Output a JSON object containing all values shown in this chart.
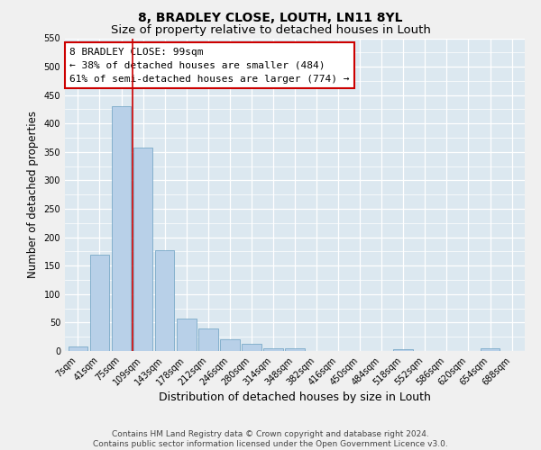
{
  "title1": "8, BRADLEY CLOSE, LOUTH, LN11 8YL",
  "title2": "Size of property relative to detached houses in Louth",
  "xlabel": "Distribution of detached houses by size in Louth",
  "ylabel": "Number of detached properties",
  "bar_labels": [
    "7sqm",
    "41sqm",
    "75sqm",
    "109sqm",
    "143sqm",
    "178sqm",
    "212sqm",
    "246sqm",
    "280sqm",
    "314sqm",
    "348sqm",
    "382sqm",
    "416sqm",
    "450sqm",
    "484sqm",
    "518sqm",
    "552sqm",
    "586sqm",
    "620sqm",
    "654sqm",
    "688sqm"
  ],
  "bar_values": [
    8,
    170,
    430,
    357,
    178,
    57,
    40,
    21,
    12,
    5,
    5,
    0,
    0,
    0,
    0,
    3,
    0,
    0,
    0,
    4,
    0
  ],
  "bar_color": "#b8d0e8",
  "bar_edge_color": "#6a9fc0",
  "vline_color": "#cc0000",
  "vline_position": 2.5,
  "annotation_text": "8 BRADLEY CLOSE: 99sqm\n← 38% of detached houses are smaller (484)\n61% of semi-detached houses are larger (774) →",
  "annotation_box_color": "#ffffff",
  "annotation_box_edge": "#cc0000",
  "ylim": [
    0,
    550
  ],
  "yticks": [
    0,
    50,
    100,
    150,
    200,
    250,
    300,
    350,
    400,
    450,
    500,
    550
  ],
  "background_color": "#dce8f0",
  "grid_color": "#ffffff",
  "footer": "Contains HM Land Registry data © Crown copyright and database right 2024.\nContains public sector information licensed under the Open Government Licence v3.0.",
  "title1_fontsize": 10,
  "title2_fontsize": 9.5,
  "xlabel_fontsize": 9,
  "ylabel_fontsize": 8.5,
  "tick_fontsize": 7,
  "annotation_fontsize": 8,
  "footer_fontsize": 6.5
}
